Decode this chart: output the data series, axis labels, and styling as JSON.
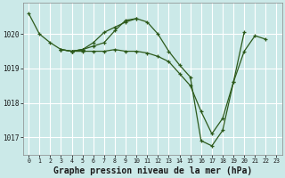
{
  "background_color": "#cbe9e8",
  "grid_color": "#ffffff",
  "line_color": "#2d5a1b",
  "marker_color": "#2d5a1b",
  "xlabel": "Graphe pression niveau de la mer (hPa)",
  "xlabel_fontsize": 7,
  "xlim": [
    -0.5,
    23.5
  ],
  "ylim": [
    1016.5,
    1020.9
  ],
  "yticks": [
    1017,
    1018,
    1019,
    1020
  ],
  "xticks": [
    0,
    1,
    2,
    3,
    4,
    5,
    6,
    7,
    8,
    9,
    10,
    11,
    12,
    13,
    14,
    15,
    16,
    17,
    18,
    19,
    20,
    21,
    22,
    23
  ],
  "series": [
    {
      "x": [
        0,
        1,
        2,
        3,
        4,
        5,
        6,
        7,
        8,
        9,
        10,
        11,
        12,
        13,
        14,
        15,
        16,
        17,
        18,
        19,
        20,
        21,
        22
      ],
      "y": [
        1020.6,
        1020.0,
        1019.75,
        1019.55,
        1019.5,
        1019.5,
        1019.5,
        1019.5,
        1019.55,
        1019.5,
        1019.5,
        1019.45,
        1019.35,
        1019.2,
        1018.85,
        1018.5,
        1017.75,
        1017.1,
        1017.55,
        1018.6,
        1019.5,
        1019.95,
        1019.85
      ]
    },
    {
      "x": [
        3,
        4,
        5,
        6,
        7,
        8,
        9,
        10,
        11,
        12,
        13,
        14,
        15,
        16,
        17,
        18,
        19,
        20
      ],
      "y": [
        1019.55,
        1019.5,
        1019.55,
        1019.65,
        1019.75,
        1020.1,
        1020.4,
        1020.45,
        1020.35,
        1020.0,
        1019.5,
        1019.1,
        1018.75,
        1016.9,
        1016.75,
        1017.2,
        1018.6,
        1020.05
      ]
    },
    {
      "x": [
        3,
        4,
        5
      ],
      "y": [
        1019.55,
        1019.5,
        1019.55
      ]
    },
    {
      "x": [
        4,
        5,
        6,
        7,
        8,
        9,
        10
      ],
      "y": [
        1019.5,
        1019.55,
        1019.75,
        1020.05,
        1020.2,
        1020.35,
        1020.45
      ]
    }
  ]
}
